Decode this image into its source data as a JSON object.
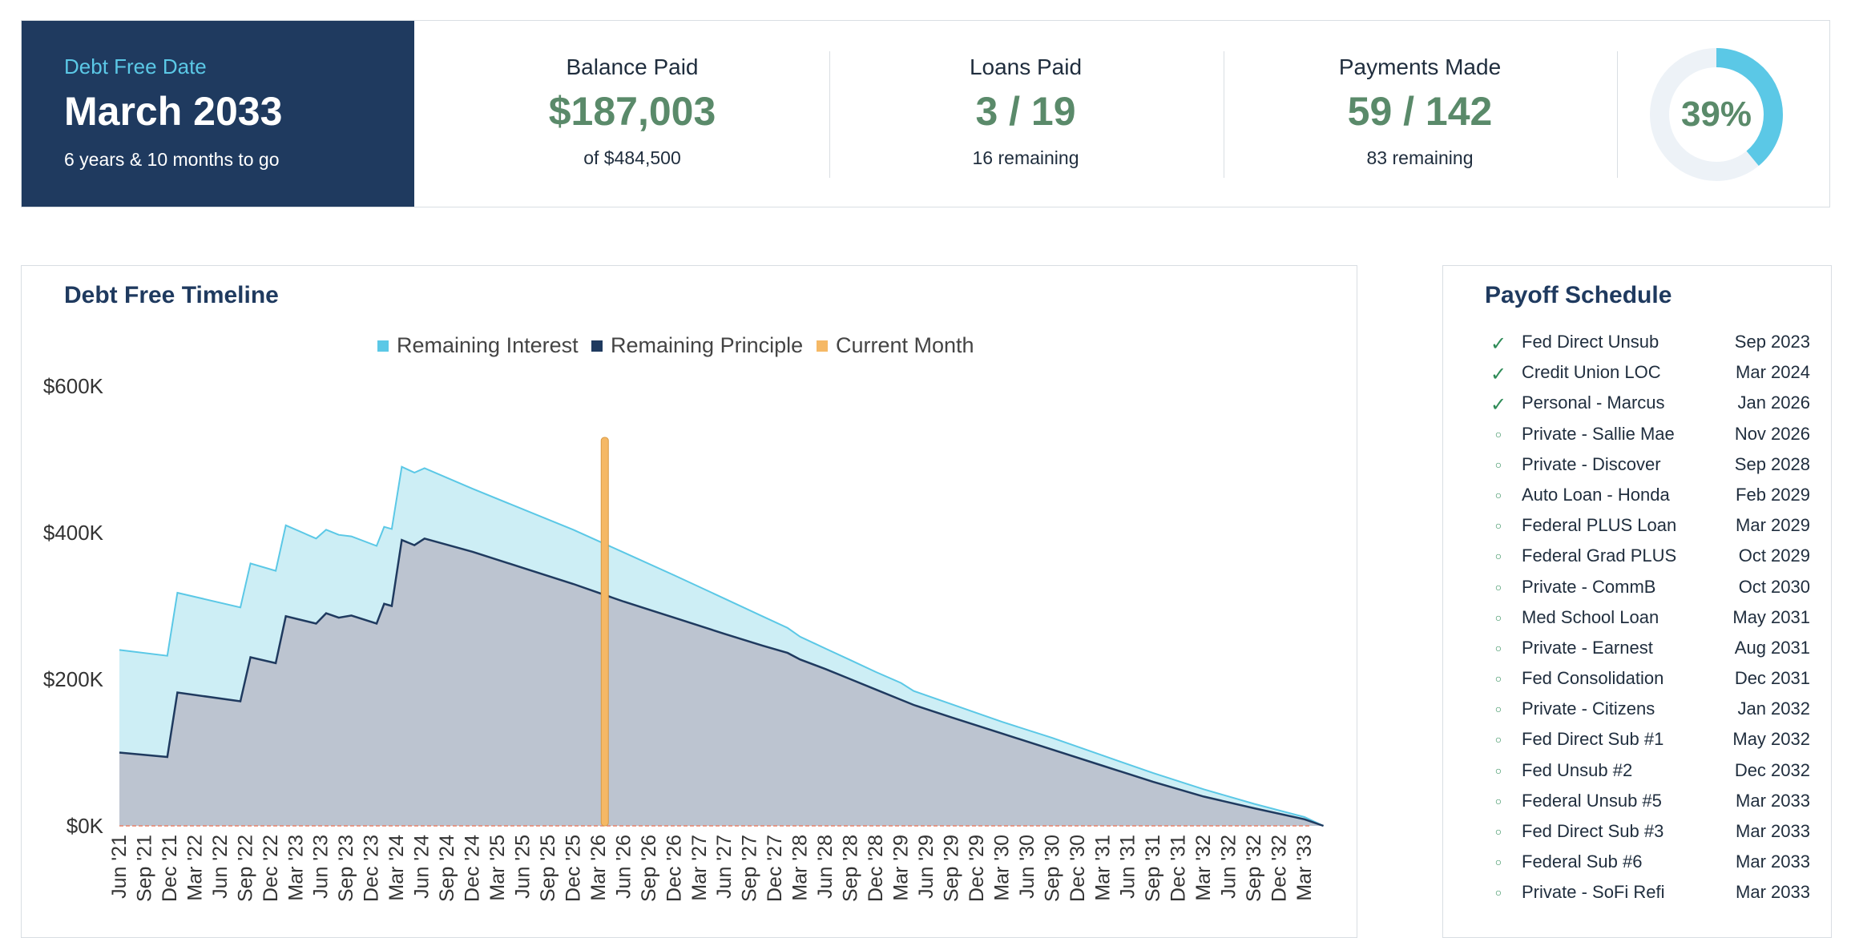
{
  "summary": {
    "debt_free": {
      "label": "Debt Free Date",
      "date": "March 2033",
      "sub": "6 years & 10 months to go"
    },
    "balance_paid": {
      "label": "Balance Paid",
      "value": "$187,003",
      "sub": "of $484,500"
    },
    "loans_paid": {
      "label": "Loans Paid",
      "value": "3 / 19",
      "sub": "16 remaining"
    },
    "payments_made": {
      "label": "Payments Made",
      "value": "59 / 142",
      "sub": "83 remaining"
    },
    "progress": {
      "label": "39%",
      "fraction": 0.39
    }
  },
  "colors": {
    "navy": "#1f3a5f",
    "interest": "#5bc8e6",
    "interest_fill": "#cdeef5",
    "principle": "#1f3a5f",
    "principle_fill": "#bcc4d0",
    "current_month": "#f5b865",
    "zero_line": "#e8826a",
    "green": "#5a8a6a"
  },
  "chart_data": {
    "type": "area",
    "title": "Debt Free Timeline",
    "legend": [
      "Remaining Interest",
      "Remaining Principle",
      "Current Month"
    ],
    "legend_position": "top-center",
    "y_ticks": [
      "$0K",
      "$200K",
      "$400K",
      "$600K"
    ],
    "ylim": [
      0,
      600
    ],
    "y_unit": "thousands of dollars",
    "x_ticks": [
      "Jun '21",
      "Sep '21",
      "Dec '21",
      "Mar '22",
      "Jun '22",
      "Sep '22",
      "Dec '22",
      "Mar '23",
      "Jun '23",
      "Sep '23",
      "Dec '23",
      "Mar '24",
      "Jun '24",
      "Sep '24",
      "Dec '24",
      "Mar '25",
      "Jun '25",
      "Sep '25",
      "Dec '25",
      "Mar '26",
      "Jun '26",
      "Sep '26",
      "Dec '26",
      "Mar '27",
      "Jun '27",
      "Sep '27",
      "Dec '27",
      "Mar '28",
      "Jun '28",
      "Sep '28",
      "Dec '28",
      "Mar '29",
      "Jun '29",
      "Sep '29",
      "Dec '29",
      "Mar '30",
      "Jun '30",
      "Sep '30",
      "Dec '30",
      "Mar '31",
      "Jun '31",
      "Sep '31",
      "Dec '31",
      "Mar '32",
      "Jun '32",
      "Sep '32",
      "Dec '32",
      "Mar '33"
    ],
    "current_month_index": 19.25,
    "current_month_value": 530,
    "series": [
      {
        "name": "Remaining Interest",
        "points": [
          [
            0,
            240
          ],
          [
            1.9,
            232
          ],
          [
            2.3,
            318
          ],
          [
            4.8,
            298
          ],
          [
            5.2,
            358
          ],
          [
            6.2,
            348
          ],
          [
            6.6,
            410
          ],
          [
            7.8,
            392
          ],
          [
            8.2,
            404
          ],
          [
            8.7,
            397
          ],
          [
            9.2,
            395
          ],
          [
            10.2,
            382
          ],
          [
            10.5,
            408
          ],
          [
            10.8,
            405
          ],
          [
            11.2,
            490
          ],
          [
            11.7,
            482
          ],
          [
            12.1,
            488
          ],
          [
            14,
            460
          ],
          [
            16,
            432
          ],
          [
            18,
            404
          ],
          [
            20,
            373
          ],
          [
            22,
            342
          ],
          [
            24,
            310
          ],
          [
            25.5,
            286
          ],
          [
            26.5,
            270
          ],
          [
            27,
            258
          ],
          [
            28,
            242
          ],
          [
            29,
            226
          ],
          [
            30,
            210
          ],
          [
            31,
            195
          ],
          [
            31.5,
            184
          ],
          [
            33,
            166
          ],
          [
            35,
            142
          ],
          [
            37,
            120
          ],
          [
            39,
            96
          ],
          [
            41,
            72
          ],
          [
            43,
            50
          ],
          [
            45,
            30
          ],
          [
            47,
            12
          ],
          [
            47.75,
            0
          ]
        ]
      },
      {
        "name": "Remaining Principle",
        "points": [
          [
            0,
            100
          ],
          [
            1.9,
            94
          ],
          [
            2.3,
            182
          ],
          [
            4.8,
            170
          ],
          [
            5.2,
            230
          ],
          [
            6.2,
            222
          ],
          [
            6.6,
            286
          ],
          [
            7.8,
            276
          ],
          [
            8.2,
            290
          ],
          [
            8.7,
            284
          ],
          [
            9.2,
            287
          ],
          [
            10.2,
            276
          ],
          [
            10.5,
            303
          ],
          [
            10.8,
            300
          ],
          [
            11.2,
            390
          ],
          [
            11.7,
            383
          ],
          [
            12.1,
            392
          ],
          [
            14,
            374
          ],
          [
            16,
            352
          ],
          [
            18,
            330
          ],
          [
            20,
            306
          ],
          [
            22,
            284
          ],
          [
            24,
            262
          ],
          [
            25.5,
            246
          ],
          [
            26.5,
            236
          ],
          [
            27,
            227
          ],
          [
            28,
            214
          ],
          [
            29,
            200
          ],
          [
            30,
            186
          ],
          [
            31,
            172
          ],
          [
            31.5,
            165
          ],
          [
            33,
            148
          ],
          [
            35,
            126
          ],
          [
            37,
            104
          ],
          [
            39,
            82
          ],
          [
            41,
            60
          ],
          [
            43,
            40
          ],
          [
            45,
            24
          ],
          [
            47,
            9
          ],
          [
            47.75,
            0
          ]
        ]
      }
    ]
  },
  "schedule": {
    "title": "Payoff Schedule",
    "items": [
      {
        "name": "Fed Direct Unsub",
        "date": "Sep 2023",
        "paid": true
      },
      {
        "name": "Credit Union LOC",
        "date": "Mar 2024",
        "paid": true
      },
      {
        "name": "Personal - Marcus",
        "date": "Jan 2026",
        "paid": true
      },
      {
        "name": "Private - Sallie Mae",
        "date": "Nov 2026",
        "paid": false
      },
      {
        "name": "Private - Discover",
        "date": "Sep 2028",
        "paid": false
      },
      {
        "name": "Auto Loan - Honda",
        "date": "Feb 2029",
        "paid": false
      },
      {
        "name": "Federal PLUS Loan",
        "date": "Mar 2029",
        "paid": false
      },
      {
        "name": "Federal Grad PLUS",
        "date": "Oct 2029",
        "paid": false
      },
      {
        "name": "Private - CommB",
        "date": "Oct 2030",
        "paid": false
      },
      {
        "name": "Med School Loan",
        "date": "May 2031",
        "paid": false
      },
      {
        "name": "Private - Earnest",
        "date": "Aug 2031",
        "paid": false
      },
      {
        "name": "Fed Consolidation",
        "date": "Dec 2031",
        "paid": false
      },
      {
        "name": "Private - Citizens",
        "date": "Jan 2032",
        "paid": false
      },
      {
        "name": "Fed Direct Sub #1",
        "date": "May 2032",
        "paid": false
      },
      {
        "name": "Fed Unsub #2",
        "date": "Dec 2032",
        "paid": false
      },
      {
        "name": "Federal Unsub #5",
        "date": "Mar 2033",
        "paid": false
      },
      {
        "name": "Fed Direct Sub #3",
        "date": "Mar 2033",
        "paid": false
      },
      {
        "name": "Federal Sub #6",
        "date": "Mar 2033",
        "paid": false
      },
      {
        "name": "Private - SoFi Refi",
        "date": "Mar 2033",
        "paid": false
      }
    ]
  }
}
